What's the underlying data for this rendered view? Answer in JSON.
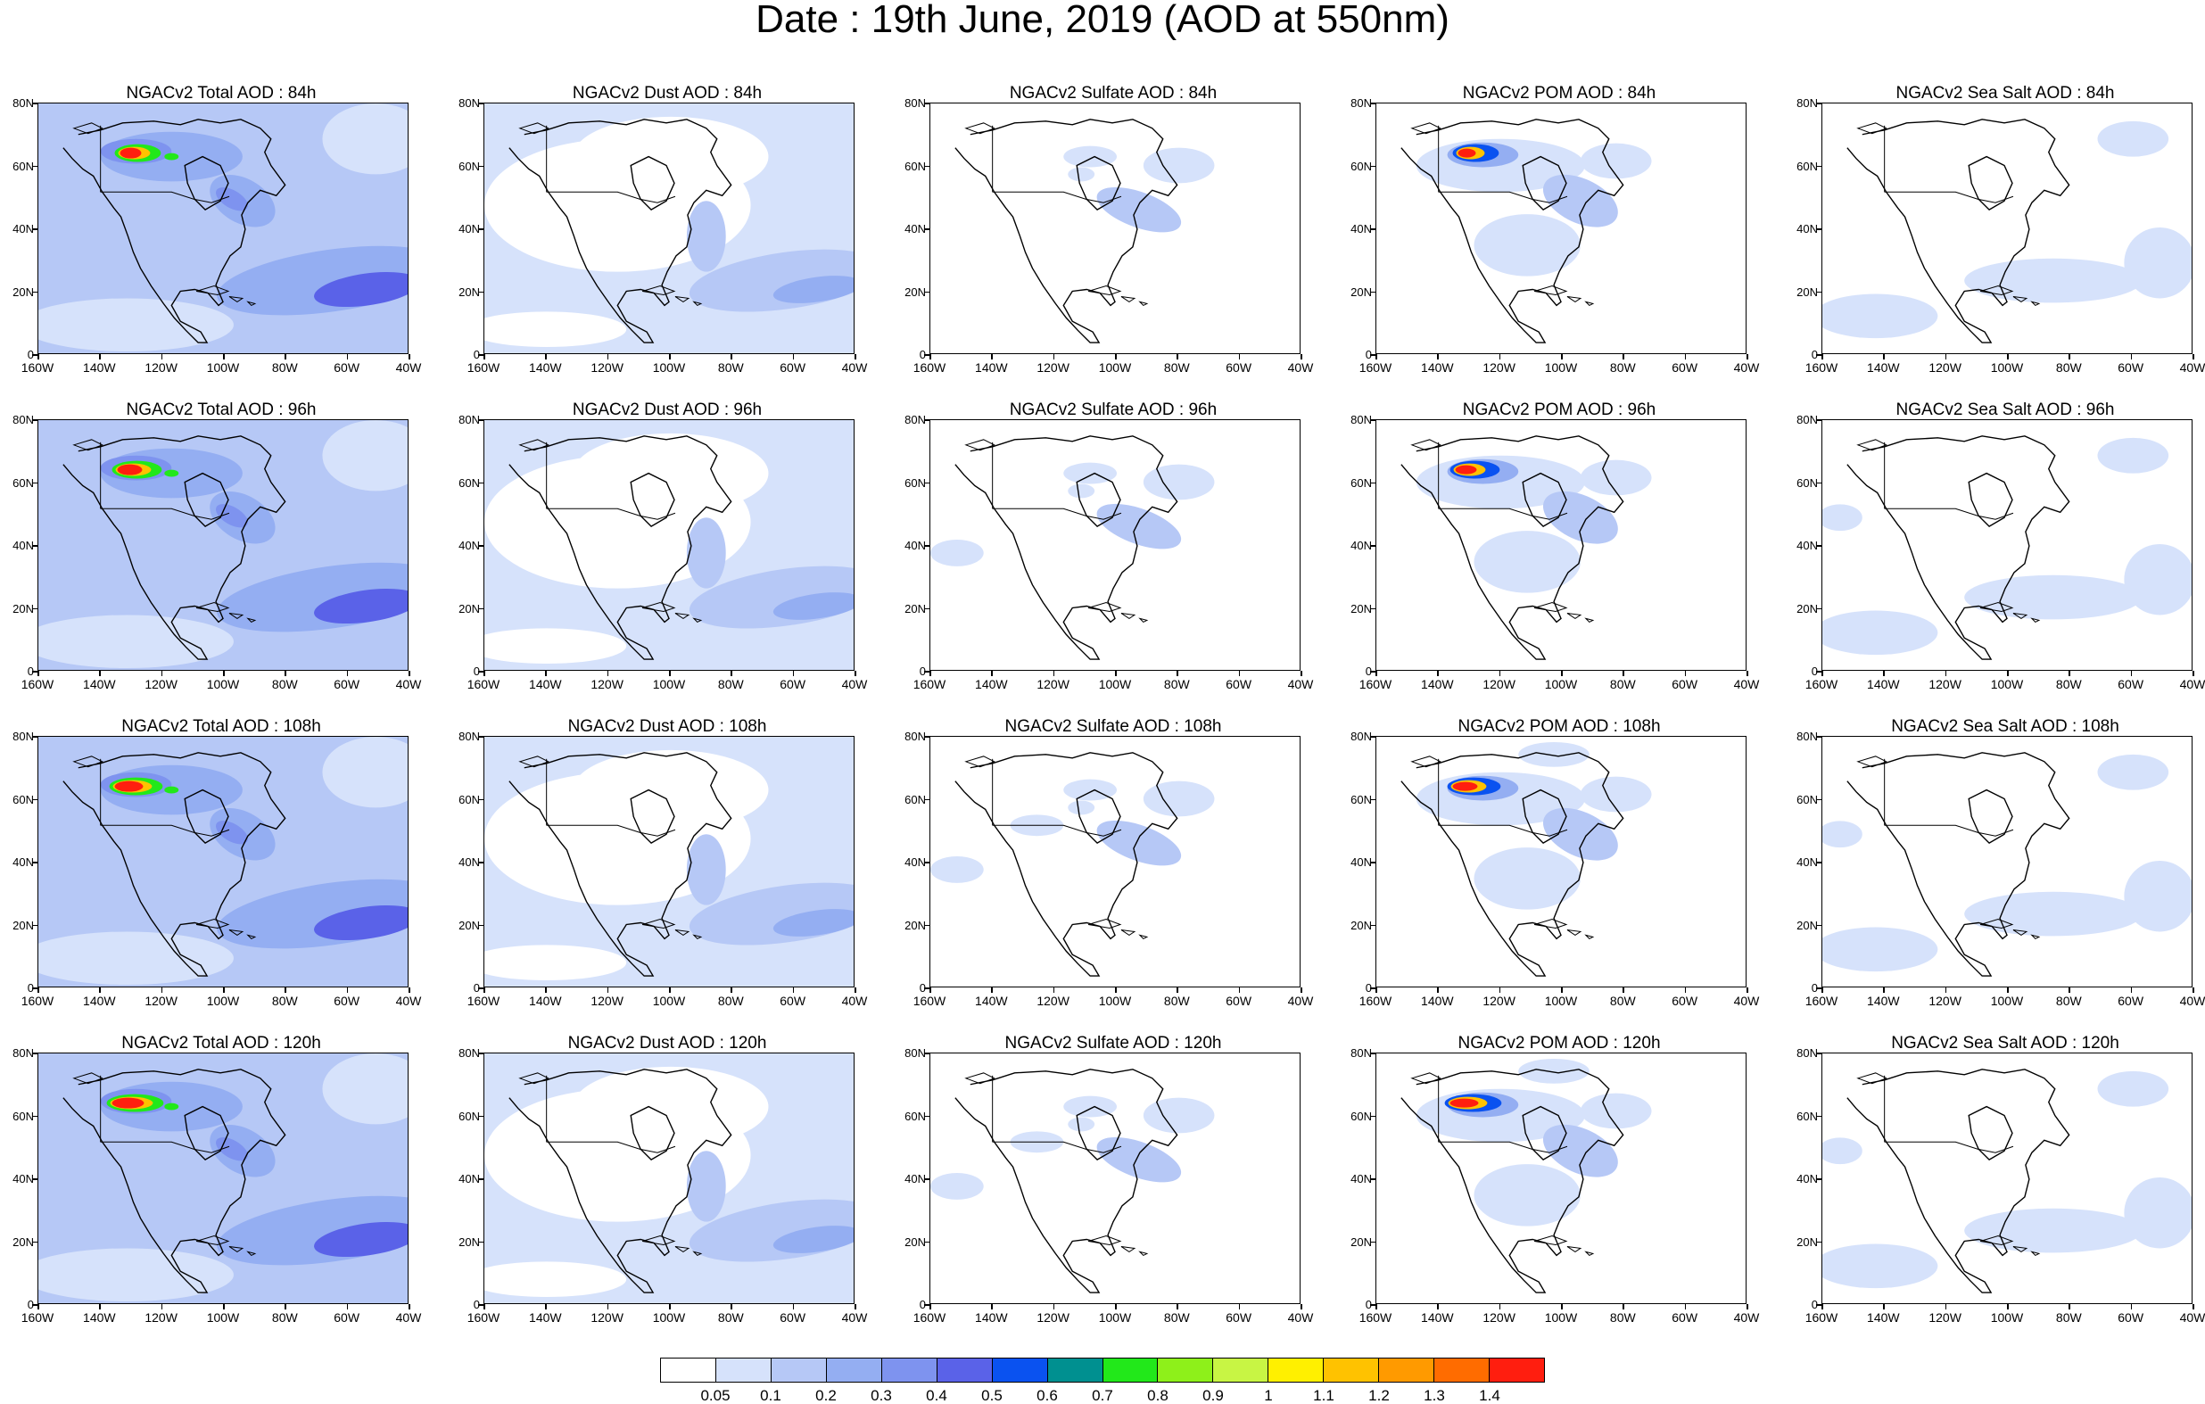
{
  "title": "Date : 19th June, 2019 (AOD at 550nm)",
  "x_ticks": [
    "160W",
    "140W",
    "120W",
    "100W",
    "80W",
    "60W",
    "40W"
  ],
  "y_ticks": [
    "80N",
    "60N",
    "40N",
    "20N",
    "0"
  ],
  "panels": [
    {
      "title": "NGACv2 Total AOD : 84h",
      "species": "total",
      "hour": 84
    },
    {
      "title": "NGACv2 Dust AOD : 84h",
      "species": "dust",
      "hour": 84
    },
    {
      "title": "NGACv2 Sulfate AOD : 84h",
      "species": "sulfate",
      "hour": 84
    },
    {
      "title": "NGACv2 POM AOD : 84h",
      "species": "pom",
      "hour": 84
    },
    {
      "title": "NGACv2 Sea Salt AOD : 84h",
      "species": "seasalt",
      "hour": 84
    },
    {
      "title": "NGACv2 Total AOD : 96h",
      "species": "total",
      "hour": 96
    },
    {
      "title": "NGACv2 Dust AOD : 96h",
      "species": "dust",
      "hour": 96
    },
    {
      "title": "NGACv2 Sulfate AOD : 96h",
      "species": "sulfate",
      "hour": 96
    },
    {
      "title": "NGACv2 POM AOD : 96h",
      "species": "pom",
      "hour": 96
    },
    {
      "title": "NGACv2 Sea Salt AOD : 96h",
      "species": "seasalt",
      "hour": 96
    },
    {
      "title": "NGACv2 Total AOD : 108h",
      "species": "total",
      "hour": 108
    },
    {
      "title": "NGACv2 Dust AOD : 108h",
      "species": "dust",
      "hour": 108
    },
    {
      "title": "NGACv2 Sulfate AOD : 108h",
      "species": "sulfate",
      "hour": 108
    },
    {
      "title": "NGACv2 POM AOD : 108h",
      "species": "pom",
      "hour": 108
    },
    {
      "title": "NGACv2 Sea Salt AOD : 108h",
      "species": "seasalt",
      "hour": 108
    },
    {
      "title": "NGACv2 Total AOD : 120h",
      "species": "total",
      "hour": 120
    },
    {
      "title": "NGACv2 Dust AOD : 120h",
      "species": "dust",
      "hour": 120
    },
    {
      "title": "NGACv2 Sulfate AOD : 120h",
      "species": "sulfate",
      "hour": 120
    },
    {
      "title": "NGACv2 POM AOD : 120h",
      "species": "pom",
      "hour": 120
    },
    {
      "title": "NGACv2 Sea Salt  AOD : 120h",
      "species": "seasalt",
      "hour": 120
    }
  ],
  "colorbar": {
    "labels": [
      "0.05",
      "0.1",
      "0.2",
      "0.3",
      "0.4",
      "0.5",
      "0.6",
      "0.7",
      "0.8",
      "0.9",
      "1",
      "1.1",
      "1.2",
      "1.3",
      "1.4"
    ],
    "colors": [
      "#ffffff",
      "#d6e2fb",
      "#b6c8f6",
      "#94aef2",
      "#7e93ef",
      "#5a62e8",
      "#0a52f0",
      "#009090",
      "#22e81a",
      "#8ef01a",
      "#c8f544",
      "#fff000",
      "#ffc200",
      "#ff9a00",
      "#ff6c00",
      "#ff1e0f"
    ]
  }
}
